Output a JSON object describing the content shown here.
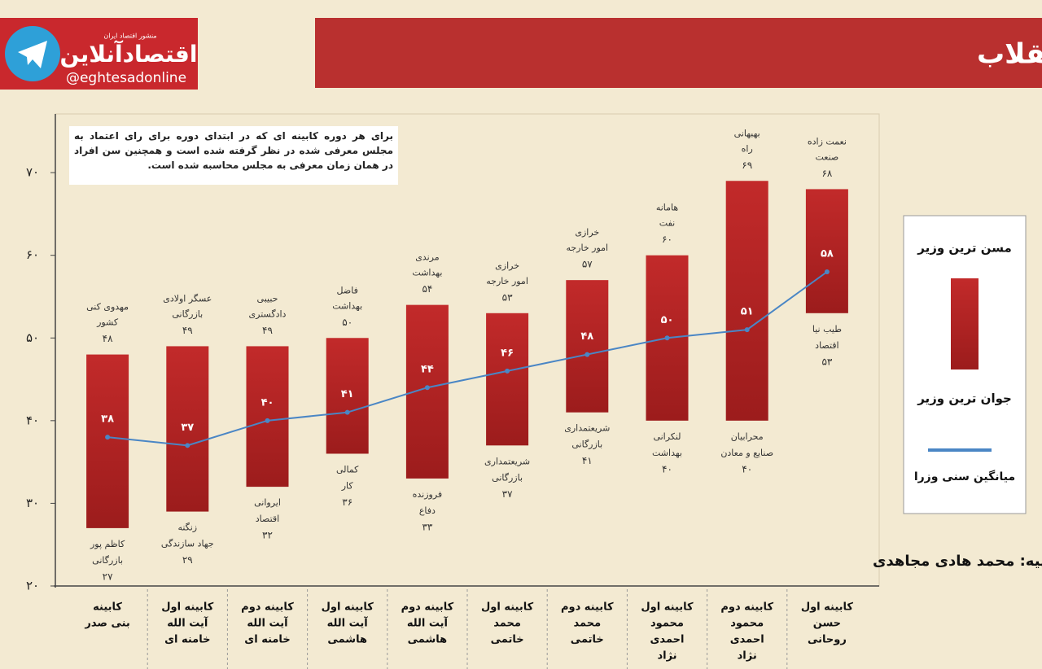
{
  "header": {
    "logo": "اقتصادآنلاین",
    "tagline": "منشور اقتصاد ایران",
    "handle": "@eghtesadonline"
  },
  "chart_data": {
    "type": "range-bar",
    "title": "محدوده سنی وزرای کابینه های بعد از انقلاب",
    "note": "برای هر دوره کابینه ای که در ابتدای دوره برای رای اعتماد به مجلس معرفی شده در نظر گرفته شده است و همچنین سن افراد در همان زمان معرفی به مجلس محاسبه شده است.",
    "credit": "تهیه: محمد هادی مجاهدی",
    "categories": [
      [
        "کابینه",
        "بنی صدر"
      ],
      [
        "کابینه اول",
        "آیت الله",
        "خامنه ای"
      ],
      [
        "کابینه دوم",
        "آیت الله",
        "خامنه ای"
      ],
      [
        "کابینه اول",
        "آیت الله",
        "هاشمی"
      ],
      [
        "کابینه دوم",
        "آیت الله",
        "هاشمی"
      ],
      [
        "کابینه اول",
        "محمد",
        "خاتمی"
      ],
      [
        "کابینه دوم",
        "محمد",
        "خاتمی"
      ],
      [
        "کابینه اول",
        "محمود",
        "احمدی",
        "نژاد"
      ],
      [
        "کابینه دوم",
        "محمود",
        "احمدی",
        "نژاد"
      ],
      [
        "کابینه اول",
        "حسن",
        "روحانی"
      ]
    ],
    "series": [
      {
        "name": "مسن ترین وزیر",
        "color": "#c22a2a",
        "values": [
          48,
          49,
          49,
          50,
          54,
          53,
          57,
          60,
          69,
          68
        ],
        "value_labels": [
          "۴۸",
          "۴۹",
          "۴۹",
          "۵۰",
          "۵۴",
          "۵۳",
          "۵۷",
          "۶۰",
          "۶۹",
          "۶۸"
        ],
        "people": [
          [
            "مهدوی کنی",
            "کشور"
          ],
          [
            "عسگر اولادی",
            "بازرگانی"
          ],
          [
            "حبیبی",
            "دادگستری"
          ],
          [
            "فاضل",
            "بهداشت"
          ],
          [
            "مرندی",
            "بهداشت"
          ],
          [
            "خرازی",
            "امور خارجه"
          ],
          [
            "خرازی",
            "امور خارجه"
          ],
          [
            "هامانه",
            "نفت"
          ],
          [
            "بهبهانی",
            "راه"
          ],
          [
            "نعمت زاده",
            "صنعت"
          ]
        ]
      },
      {
        "name": "جوان ترین وزیر",
        "color": "#9c1c1c",
        "values": [
          27,
          29,
          32,
          36,
          33,
          37,
          41,
          40,
          40,
          53
        ],
        "value_labels": [
          "۲۷",
          "۲۹",
          "۳۲",
          "۳۶",
          "۳۳",
          "۳۷",
          "۴۱",
          "۴۰",
          "۴۰",
          "۵۳"
        ],
        "people": [
          [
            "کاظم پور",
            "بازرگانی"
          ],
          [
            "زنگنه",
            "جهاد سازندگی"
          ],
          [
            "ایروانی",
            "اقتصاد"
          ],
          [
            "کمالی",
            "کار"
          ],
          [
            "فروزنده",
            "دفاع"
          ],
          [
            "شریعتمداری",
            "بازرگانی"
          ],
          [
            "شریعتمداری",
            "بازرگانی"
          ],
          [
            "لنکرانی",
            "بهداشت"
          ],
          [
            "محرابیان",
            "صنایع و معادن"
          ],
          [
            "طیب نیا",
            "اقتصاد"
          ]
        ]
      },
      {
        "name": "میانگین سنی وزرا",
        "color": "#4a86c5",
        "values": [
          38,
          37,
          40,
          41,
          44,
          46,
          48,
          50,
          51,
          58
        ],
        "value_labels": [
          "۳۸",
          "۳۷",
          "۴۰",
          "۴۱",
          "۴۴",
          "۴۶",
          "۴۸",
          "۵۰",
          "۵۱",
          "۵۸"
        ]
      }
    ],
    "ylim": [
      20,
      77
    ],
    "yticks": [
      {
        "value": 20,
        "label": "۲۰"
      },
      {
        "value": 30,
        "label": "۳۰"
      },
      {
        "value": 40,
        "label": "۴۰"
      },
      {
        "value": 50,
        "label": "۵۰"
      },
      {
        "value": 60,
        "label": "۶۰"
      },
      {
        "value": 70,
        "label": "۷۰"
      }
    ],
    "grid": false
  }
}
